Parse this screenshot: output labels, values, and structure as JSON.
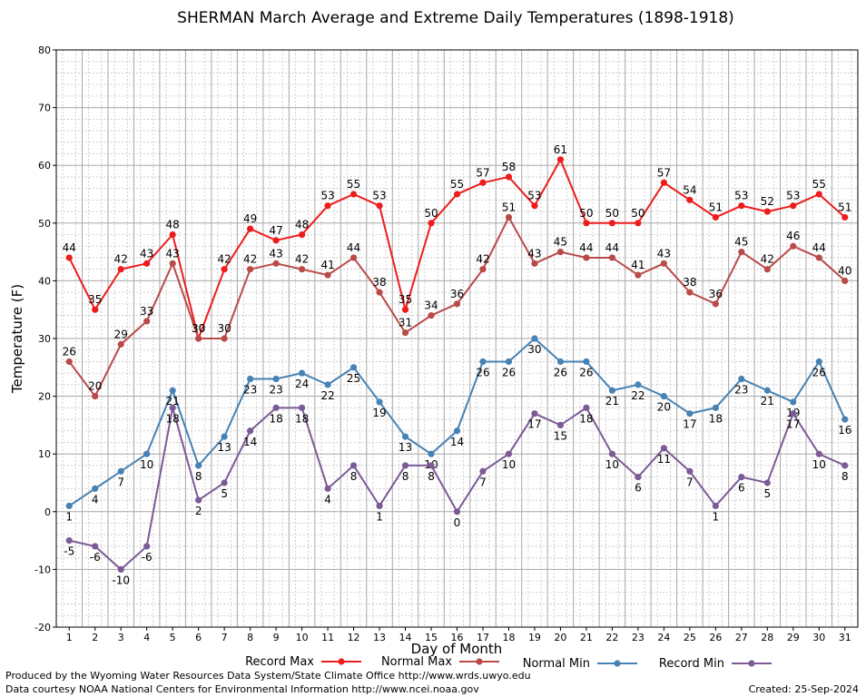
{
  "chart_data": {
    "type": "line",
    "title": "SHERMAN March Average and Extreme Daily Temperatures (1898-1918)",
    "xlabel": "Day of Month",
    "ylabel": "Temperature (F)",
    "xlim": [
      1,
      31
    ],
    "ylim": [
      -20,
      80
    ],
    "y_ticks": [
      -20,
      -10,
      0,
      10,
      20,
      30,
      40,
      50,
      60,
      70,
      80
    ],
    "x": [
      1,
      2,
      3,
      4,
      5,
      6,
      7,
      8,
      9,
      10,
      11,
      12,
      13,
      14,
      15,
      16,
      17,
      18,
      19,
      20,
      21,
      22,
      23,
      24,
      25,
      26,
      27,
      28,
      29,
      30,
      31
    ],
    "grid": true,
    "legend_position": "bottom",
    "series": [
      {
        "name": "Record Max",
        "color": "#ee1c1c",
        "values": [
          44,
          35,
          42,
          43,
          48,
          30,
          42,
          49,
          47,
          48,
          53,
          55,
          53,
          35,
          50,
          55,
          57,
          58,
          53,
          61,
          50,
          50,
          50,
          57,
          54,
          51,
          53,
          52,
          53,
          55,
          51
        ]
      },
      {
        "name": "Normal Max",
        "color": "#b94a48",
        "values": [
          26,
          20,
          29,
          33,
          43,
          30,
          30,
          42,
          43,
          42,
          41,
          44,
          38,
          31,
          34,
          36,
          42,
          51,
          43,
          45,
          44,
          44,
          41,
          43,
          38,
          36,
          45,
          42,
          46,
          44,
          40
        ]
      },
      {
        "name": "Normal Min",
        "color": "#4682b4",
        "values": [
          1,
          4,
          7,
          10,
          21,
          8,
          13,
          23,
          23,
          24,
          22,
          25,
          19,
          13,
          10,
          14,
          26,
          26,
          30,
          26,
          26,
          21,
          22,
          20,
          17,
          18,
          23,
          21,
          19,
          26,
          16
        ]
      },
      {
        "name": "Record Min",
        "color": "#7b5a96",
        "values": [
          -5,
          -6,
          -10,
          -6,
          18,
          2,
          5,
          14,
          18,
          18,
          4,
          8,
          1,
          8,
          8,
          0,
          7,
          10,
          17,
          15,
          18,
          10,
          6,
          11,
          7,
          1,
          6,
          5,
          17,
          10,
          8
        ]
      }
    ]
  },
  "footer": {
    "line1": "Produced by the Wyoming Water Resources Data System/State Climate Office http://www.wrds.uwyo.edu",
    "line2": "Data courtesy NOAA National Centers for Environmental Information http://www.ncei.noaa.gov",
    "created": "Created:  25-Sep-2024"
  }
}
